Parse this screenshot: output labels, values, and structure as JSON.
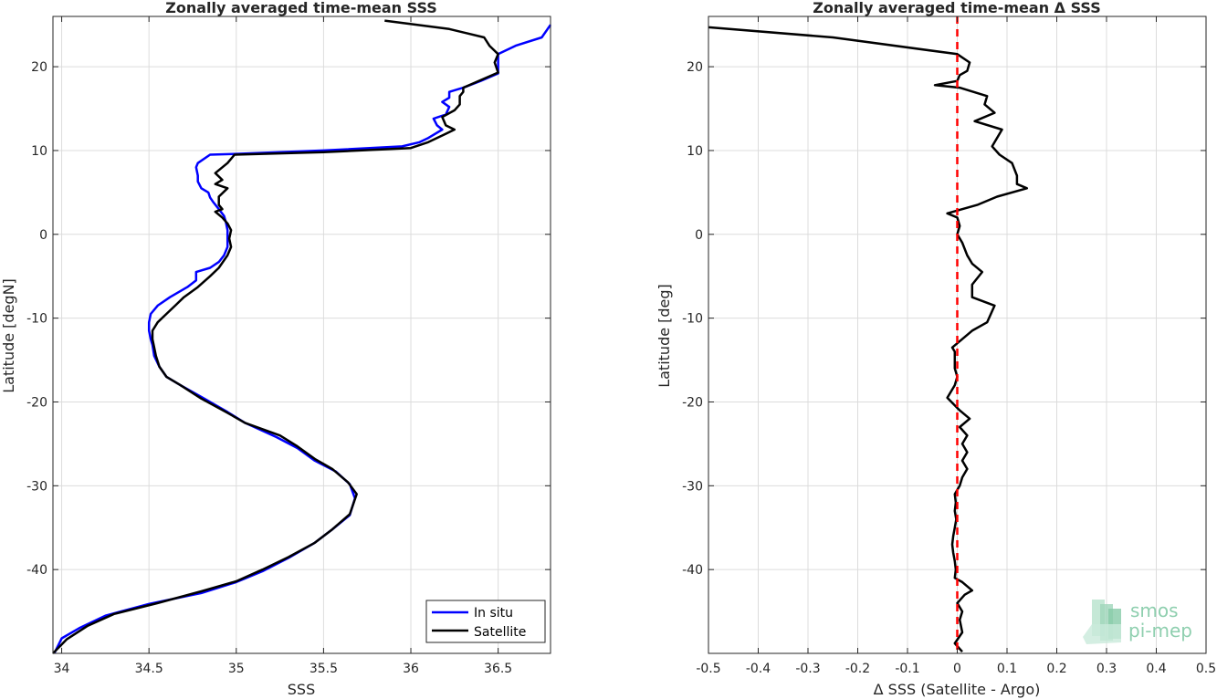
{
  "chart_data": [
    {
      "type": "line",
      "title": "Zonally averaged time-mean SSS",
      "xlabel": "SSS",
      "ylabel": "Latitude [degN]",
      "xlim": [
        33.95,
        36.8
      ],
      "ylim": [
        -50,
        26
      ],
      "x_ticks": [
        "34",
        "34.5",
        "35",
        "35.5",
        "36",
        "36.5"
      ],
      "x_tick_values": [
        34,
        34.5,
        35,
        35.5,
        36,
        36.5
      ],
      "y_ticks": [
        "-40",
        "-30",
        "-20",
        "-10",
        "0",
        "10",
        "20"
      ],
      "y_tick_values": [
        -40,
        -30,
        -20,
        -10,
        0,
        10,
        20
      ],
      "grid": true,
      "legend": {
        "position": "bottom-right",
        "entries": [
          "In situ",
          "Satellite"
        ]
      },
      "series": [
        {
          "name": "In situ",
          "color": "#0000ff",
          "points": [
            [
              33.96,
              -49.9
            ],
            [
              34.0,
              -48.2
            ],
            [
              34.1,
              -47.0
            ],
            [
              34.25,
              -45.5
            ],
            [
              34.5,
              -44.1
            ],
            [
              34.8,
              -42.8
            ],
            [
              35.0,
              -41.5
            ],
            [
              35.15,
              -40.2
            ],
            [
              35.3,
              -38.6
            ],
            [
              35.45,
              -36.8
            ],
            [
              35.55,
              -35.2
            ],
            [
              35.65,
              -33.5
            ],
            [
              35.68,
              -31.5
            ],
            [
              35.65,
              -29.8
            ],
            [
              35.57,
              -28.3
            ],
            [
              35.45,
              -27.0
            ],
            [
              35.35,
              -25.5
            ],
            [
              35.23,
              -24.2
            ],
            [
              35.05,
              -22.5
            ],
            [
              34.95,
              -21.2
            ],
            [
              34.8,
              -19.4
            ],
            [
              34.68,
              -18.0
            ],
            [
              34.6,
              -17.0
            ],
            [
              34.56,
              -15.8
            ],
            [
              34.53,
              -14.5
            ],
            [
              34.52,
              -13.2
            ],
            [
              34.51,
              -12.5
            ],
            [
              34.5,
              -11.5
            ],
            [
              34.5,
              -10.5
            ],
            [
              34.51,
              -9.5
            ],
            [
              34.55,
              -8.5
            ],
            [
              34.62,
              -7.5
            ],
            [
              34.72,
              -6.3
            ],
            [
              34.77,
              -5.5
            ],
            [
              34.77,
              -4.5
            ],
            [
              34.85,
              -4.0
            ],
            [
              34.9,
              -3.3
            ],
            [
              34.93,
              -2.5
            ],
            [
              34.95,
              -1.5
            ],
            [
              34.95,
              -0.5
            ],
            [
              34.95,
              0.5
            ],
            [
              34.94,
              1.5
            ],
            [
              34.93,
              2.2
            ],
            [
              34.9,
              3.0
            ],
            [
              34.87,
              3.8
            ],
            [
              34.85,
              4.4
            ],
            [
              34.84,
              5.0
            ],
            [
              34.8,
              5.5
            ],
            [
              34.78,
              6.3
            ],
            [
              34.78,
              7.0
            ],
            [
              34.77,
              8.0
            ],
            [
              34.78,
              8.5
            ],
            [
              34.85,
              9.5
            ],
            [
              35.0,
              9.6
            ],
            [
              35.5,
              10.0
            ],
            [
              35.95,
              10.5
            ],
            [
              36.05,
              11.0
            ],
            [
              36.1,
              11.5
            ],
            [
              36.18,
              12.5
            ],
            [
              36.15,
              13.0
            ],
            [
              36.13,
              13.8
            ],
            [
              36.2,
              14.3
            ],
            [
              36.22,
              15.2
            ],
            [
              36.18,
              15.8
            ],
            [
              36.22,
              16.3
            ],
            [
              36.22,
              17.0
            ],
            [
              36.3,
              17.5
            ],
            [
              36.4,
              18.3
            ],
            [
              36.5,
              19.2
            ],
            [
              36.5,
              20.5
            ],
            [
              36.5,
              21.5
            ],
            [
              36.6,
              22.5
            ],
            [
              36.75,
              23.5
            ],
            [
              36.8,
              25.0
            ]
          ]
        },
        {
          "name": "Satellite",
          "color": "#000000",
          "points": [
            [
              33.95,
              -50.0
            ],
            [
              34.03,
              -48.3
            ],
            [
              34.15,
              -46.7
            ],
            [
              34.3,
              -45.3
            ],
            [
              34.55,
              -44.0
            ],
            [
              34.8,
              -42.6
            ],
            [
              35.0,
              -41.4
            ],
            [
              35.15,
              -40.0
            ],
            [
              35.3,
              -38.5
            ],
            [
              35.45,
              -36.8
            ],
            [
              35.55,
              -35.2
            ],
            [
              35.65,
              -33.4
            ],
            [
              35.69,
              -31.0
            ],
            [
              35.64,
              -29.6
            ],
            [
              35.55,
              -28.0
            ],
            [
              35.45,
              -26.8
            ],
            [
              35.35,
              -25.3
            ],
            [
              35.25,
              -24.0
            ],
            [
              35.05,
              -22.5
            ],
            [
              34.95,
              -21.3
            ],
            [
              34.8,
              -19.6
            ],
            [
              34.68,
              -18.0
            ],
            [
              34.6,
              -17.0
            ],
            [
              34.56,
              -15.8
            ],
            [
              34.54,
              -14.5
            ],
            [
              34.53,
              -13.5
            ],
            [
              34.52,
              -12.5
            ],
            [
              34.52,
              -11.5
            ],
            [
              34.55,
              -10.5
            ],
            [
              34.6,
              -9.5
            ],
            [
              34.65,
              -8.5
            ],
            [
              34.7,
              -7.5
            ],
            [
              34.78,
              -6.3
            ],
            [
              34.85,
              -5.0
            ],
            [
              34.9,
              -4.0
            ],
            [
              34.95,
              -2.5
            ],
            [
              34.97,
              -1.5
            ],
            [
              34.96,
              -0.5
            ],
            [
              34.97,
              0.5
            ],
            [
              34.95,
              1.3
            ],
            [
              34.92,
              2.0
            ],
            [
              34.88,
              2.7
            ],
            [
              34.92,
              3.0
            ],
            [
              34.9,
              3.5
            ],
            [
              34.9,
              4.5
            ],
            [
              34.95,
              5.5
            ],
            [
              34.88,
              6.0
            ],
            [
              34.92,
              6.5
            ],
            [
              34.88,
              7.3
            ],
            [
              34.95,
              8.5
            ],
            [
              34.99,
              9.5
            ],
            [
              35.5,
              9.8
            ],
            [
              36.0,
              10.3
            ],
            [
              36.1,
              11.0
            ],
            [
              36.2,
              12.0
            ],
            [
              36.25,
              12.5
            ],
            [
              36.2,
              13.0
            ],
            [
              36.18,
              14.0
            ],
            [
              36.25,
              14.8
            ],
            [
              36.28,
              15.5
            ],
            [
              36.28,
              16.5
            ],
            [
              36.3,
              17.0
            ],
            [
              36.3,
              17.5
            ],
            [
              36.5,
              19.3
            ],
            [
              36.48,
              20.5
            ],
            [
              36.5,
              21.5
            ],
            [
              36.45,
              22.5
            ],
            [
              36.42,
              23.5
            ],
            [
              36.22,
              24.5
            ],
            [
              35.85,
              25.5
            ]
          ]
        }
      ]
    },
    {
      "type": "line",
      "title": "Zonally averaged time-mean Δ SSS",
      "xlabel": "Δ SSS (Satellite - Argo)",
      "ylabel": "Latitude [deg]",
      "xlim": [
        -0.5,
        0.5
      ],
      "ylim": [
        -50,
        26
      ],
      "x_ticks": [
        "-0.5",
        "-0.4",
        "-0.3",
        "-0.2",
        "-0.1",
        "0",
        "0.1",
        "0.2",
        "0.3",
        "0.4",
        "0.5"
      ],
      "x_tick_values": [
        -0.5,
        -0.4,
        -0.3,
        -0.2,
        -0.1,
        0,
        0.1,
        0.2,
        0.3,
        0.4,
        0.5
      ],
      "y_ticks": [
        "-40",
        "-30",
        "-20",
        "-10",
        "0",
        "10",
        "20"
      ],
      "y_tick_values": [
        -40,
        -30,
        -20,
        -10,
        0,
        10,
        20
      ],
      "grid": true,
      "reference_line": {
        "x": 0,
        "color": "#ff0000",
        "style": "dashed"
      },
      "series": [
        {
          "color": "#000000",
          "points": [
            [
              0.01,
              -49.8
            ],
            [
              -0.005,
              -48.8
            ],
            [
              0.01,
              -47.5
            ],
            [
              0.005,
              -46.0
            ],
            [
              0.01,
              -45.0
            ],
            [
              0.0,
              -44.0
            ],
            [
              0.015,
              -43.0
            ],
            [
              0.03,
              -42.5
            ],
            [
              0.01,
              -41.5
            ],
            [
              -0.005,
              -41.0
            ],
            [
              -0.003,
              -40.0
            ],
            [
              -0.005,
              -39.0
            ],
            [
              -0.008,
              -38.0
            ],
            [
              -0.01,
              -37.0
            ],
            [
              -0.008,
              -36.0
            ],
            [
              -0.005,
              -35.0
            ],
            [
              -0.002,
              -34.0
            ],
            [
              -0.005,
              -33.0
            ],
            [
              -0.003,
              -32.0
            ],
            [
              -0.005,
              -31.0
            ],
            [
              0.005,
              -30.0
            ],
            [
              0.01,
              -29.0
            ],
            [
              0.02,
              -28.0
            ],
            [
              0.01,
              -27.0
            ],
            [
              0.02,
              -26.0
            ],
            [
              0.01,
              -25.0
            ],
            [
              0.02,
              -24.0
            ],
            [
              0.005,
              -23.0
            ],
            [
              0.025,
              -22.0
            ],
            [
              0.005,
              -21.0
            ],
            [
              -0.02,
              -19.5
            ],
            [
              -0.005,
              -18.0
            ],
            [
              0.0,
              -17.0
            ],
            [
              -0.005,
              -16.0
            ],
            [
              -0.005,
              -15.0
            ],
            [
              -0.005,
              -14.0
            ],
            [
              -0.01,
              -13.5
            ],
            [
              0.01,
              -12.5
            ],
            [
              0.03,
              -11.5
            ],
            [
              0.06,
              -10.5
            ],
            [
              0.075,
              -8.5
            ],
            [
              0.03,
              -7.5
            ],
            [
              0.03,
              -6.0
            ],
            [
              0.05,
              -4.5
            ],
            [
              0.03,
              -3.5
            ],
            [
              0.02,
              -2.5
            ],
            [
              0.01,
              -1.0
            ],
            [
              0.0,
              0.0
            ],
            [
              0.005,
              1.0
            ],
            [
              0.0,
              2.0
            ],
            [
              -0.02,
              2.5
            ],
            [
              0.04,
              3.5
            ],
            [
              0.08,
              4.5
            ],
            [
              0.14,
              5.5
            ],
            [
              0.12,
              6.0
            ],
            [
              0.12,
              7.0
            ],
            [
              0.11,
              8.5
            ],
            [
              0.085,
              9.5
            ],
            [
              0.07,
              10.5
            ],
            [
              0.09,
              12.5
            ],
            [
              0.035,
              13.5
            ],
            [
              0.075,
              14.5
            ],
            [
              0.055,
              15.5
            ],
            [
              0.06,
              16.5
            ],
            [
              0.005,
              17.5
            ],
            [
              -0.045,
              17.8
            ],
            [
              0.0,
              18.3
            ],
            [
              0.005,
              19.0
            ],
            [
              0.02,
              19.5
            ],
            [
              0.025,
              20.5
            ],
            [
              0.0,
              21.5
            ],
            [
              -0.25,
              23.5
            ],
            [
              -0.5,
              24.7
            ]
          ]
        }
      ]
    }
  ],
  "watermark": {
    "line1": "smos",
    "line2": "pi-mep"
  }
}
